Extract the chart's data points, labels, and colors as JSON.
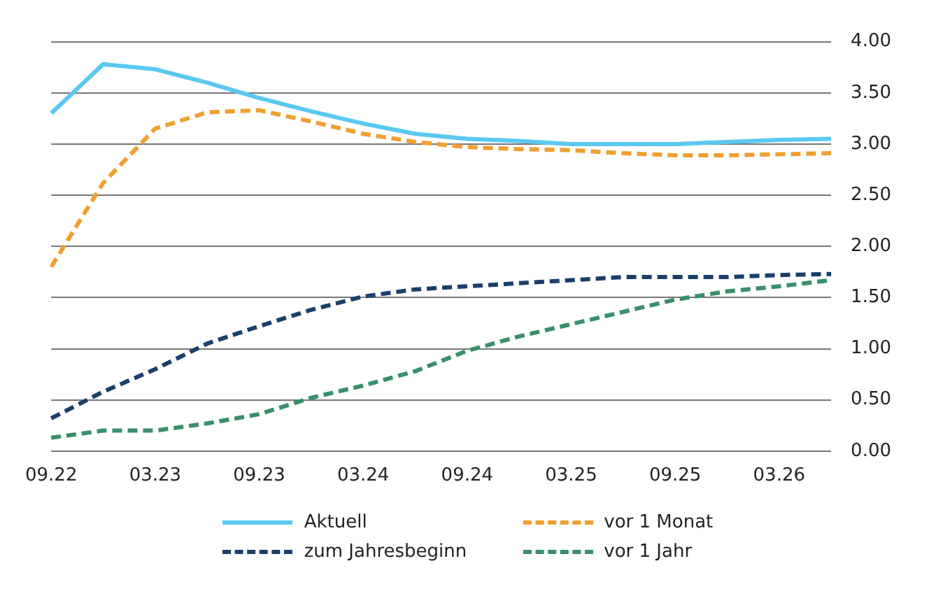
{
  "chart_data": {
    "type": "line",
    "categories": [
      "09.22",
      null,
      "03.23",
      null,
      "09.23",
      null,
      "03.24",
      null,
      "09.24",
      null,
      "03.25",
      null,
      "09.25",
      null,
      "03.26",
      null
    ],
    "series": [
      {
        "name": "Aktuell",
        "color": "#5bc8f0",
        "line_style": "solid",
        "values": [
          3.3,
          3.78,
          3.73,
          3.6,
          3.45,
          3.32,
          3.2,
          3.1,
          3.05,
          3.03,
          3.0,
          3.0,
          3.0,
          3.02,
          3.04,
          3.05
        ]
      },
      {
        "name": "vor 1 Monat",
        "color": "#f0a030",
        "line_style": "dashed",
        "values": [
          1.8,
          2.62,
          3.15,
          3.31,
          3.33,
          3.22,
          3.1,
          3.02,
          2.97,
          2.95,
          2.94,
          2.91,
          2.89,
          2.89,
          2.9,
          2.91
        ]
      },
      {
        "name": "zum Jahresbeginn",
        "color": "#1a3f6b",
        "line_style": "dashed",
        "values": [
          0.32,
          0.58,
          0.8,
          1.05,
          1.22,
          1.38,
          1.51,
          1.58,
          1.61,
          1.64,
          1.67,
          1.7,
          1.7,
          1.7,
          1.72,
          1.73
        ]
      },
      {
        "name": "vor 1 Jahr",
        "color": "#3a8f6a",
        "line_style": "dashed",
        "values": [
          0.13,
          0.2,
          0.2,
          0.27,
          0.36,
          0.52,
          0.64,
          0.78,
          0.98,
          1.12,
          1.24,
          1.36,
          1.48,
          1.56,
          1.61,
          1.67
        ]
      }
    ],
    "ylim": [
      0,
      4
    ],
    "yticks": [
      {
        "value": 0,
        "label": "0.00"
      },
      {
        "value": 0.5,
        "label": "0.50"
      },
      {
        "value": 1,
        "label": "1.00"
      },
      {
        "value": 1.5,
        "label": "1.50"
      },
      {
        "value": 2,
        "label": "2.00"
      },
      {
        "value": 2.5,
        "label": "2.50"
      },
      {
        "value": 3,
        "label": "3.00"
      },
      {
        "value": 3.5,
        "label": "3.50"
      },
      {
        "value": 4,
        "label": "4.00"
      }
    ],
    "grid": "y",
    "legend": "bottom",
    "marker": "none"
  }
}
